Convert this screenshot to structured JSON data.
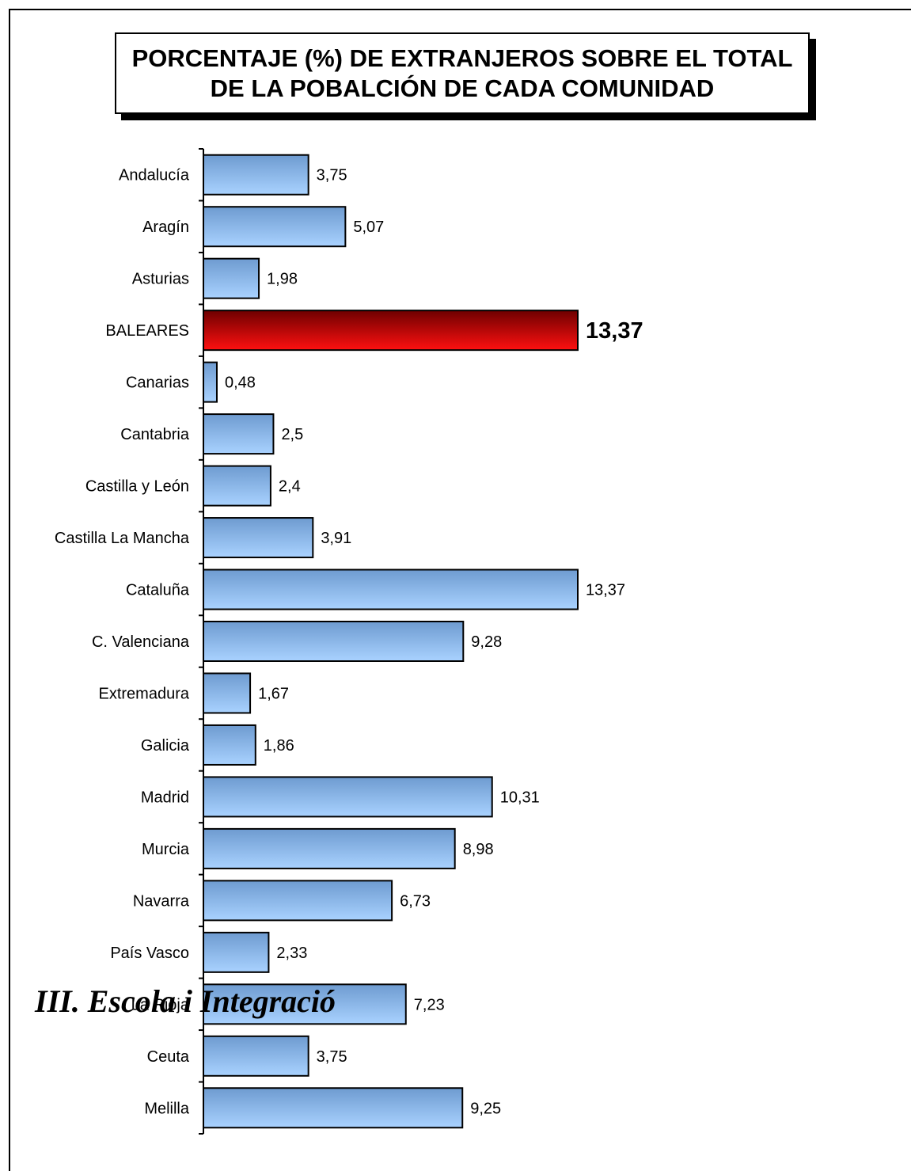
{
  "overlay_text": "III. Escola i Integració",
  "chart_data": {
    "type": "bar",
    "orientation": "horizontal",
    "title_lines": [
      "PORCENTAJE (%) DE EXTRANJEROS SOBRE EL TOTAL",
      "DE LA POBALCIÓN DE CADA COMUNIDAD"
    ],
    "categories": [
      "Andalucía",
      "Aragín",
      "Asturias",
      "BALEARES",
      "Canarias",
      "Cantabria",
      "Castilla y León",
      "Castilla La Mancha",
      "Cataluña",
      "C. Valenciana",
      "Extremadura",
      "Galicia",
      "Madrid",
      "Murcia",
      "Navarra",
      "País Vasco",
      "La Rioja",
      "Ceuta",
      "Melilla"
    ],
    "values": [
      3.75,
      5.07,
      1.98,
      13.37,
      0.48,
      2.5,
      2.4,
      3.91,
      13.37,
      9.28,
      1.67,
      1.86,
      10.31,
      8.98,
      6.73,
      2.33,
      7.23,
      3.75,
      9.25
    ],
    "value_labels": [
      "3,75",
      "5,07",
      "1,98",
      "13,37",
      "0,48",
      "2,5",
      "2,4",
      "3,91",
      "13,37",
      "9,28",
      "1,67",
      "1,86",
      "10,31",
      "8,98",
      "6,73",
      "2,33",
      "7,23",
      "3,75",
      "9,25"
    ],
    "highlight": "BALEARES",
    "highlight_color": "#cc0000",
    "bar_color": "#8fb8e8",
    "xlim": [
      0,
      15
    ],
    "grid": false,
    "legend": "none"
  }
}
